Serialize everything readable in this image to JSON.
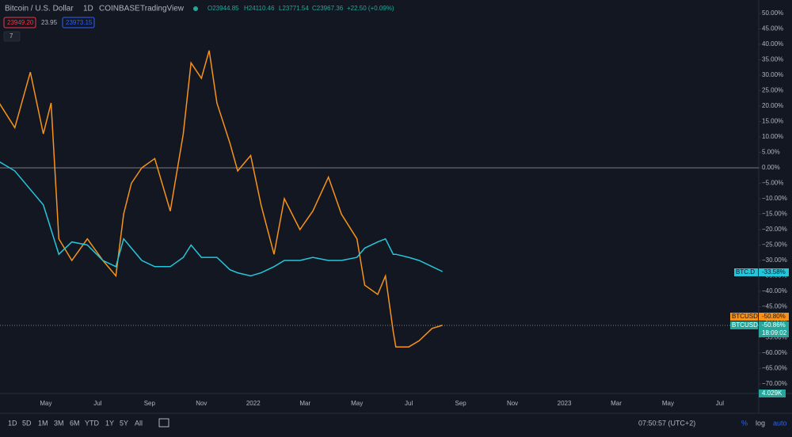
{
  "header": {
    "symbol": "Bitcoin / U.S. Dollar",
    "interval": "1D",
    "exchange": "COINBASE",
    "source": "TradingView",
    "open": "O23944.85",
    "high": "H24110.46",
    "low": "L23771.54",
    "close": "C23967.36",
    "change": "+22.50 (+0.09%)",
    "bid": "23949.20",
    "spread": "23.95",
    "ask": "23973.15",
    "indicators": "7"
  },
  "price_labels": {
    "dominance_name": "BTC.D",
    "dominance_value": "-33.58%",
    "usd_name_1": "BTCUSD",
    "usd_value_1": "-50.80%",
    "usd_name_2": "BTCUSD",
    "usd_value_2": "-50.86%",
    "countdown": "18:09:02",
    "volume": "4.029K"
  },
  "toolbar": {
    "ranges": [
      "1D",
      "5D",
      "1M",
      "3M",
      "6M",
      "YTD",
      "1Y",
      "5Y",
      "All"
    ],
    "clock": "07:50:57 (UTC+2)",
    "percent": "%",
    "log": "log",
    "auto": "auto"
  },
  "chart_data": {
    "type": "line",
    "grid": false,
    "x": [
      2.2,
      2.8,
      3.4,
      3.9,
      4.2,
      4.5,
      5.0,
      5.6,
      6.2,
      6.7,
      7.0,
      7.3,
      7.7,
      8.2,
      8.8,
      9.3,
      9.6,
      10.0,
      10.3,
      10.6,
      11.1,
      11.4,
      11.9,
      12.3,
      12.8,
      13.2,
      13.8,
      14.3,
      14.9,
      15.4,
      16.0,
      16.3,
      16.8,
      17.1,
      17.4,
      17.5,
      18.0,
      18.4,
      18.9,
      19.3
    ],
    "series": [
      {
        "name": "BTCUSD",
        "color": "#f7931a",
        "values": [
          21,
          13,
          31,
          11,
          21,
          -23,
          -30,
          -23,
          -30,
          -35,
          -15,
          -5,
          0,
          3,
          -14,
          11,
          34,
          29,
          38,
          21,
          8,
          -1,
          4,
          -12,
          -28,
          -10,
          -20,
          -14,
          -3,
          -15,
          -23,
          -38,
          -41,
          -35,
          -53,
          -58,
          -58,
          -56,
          -52,
          -51
        ]
      },
      {
        "name": "BTC.D",
        "color": "#26c6da",
        "values": [
          2,
          -1,
          -7,
          -12,
          -20,
          -28,
          -24,
          -25,
          -30,
          -32,
          -23,
          -26,
          -30,
          -32,
          -32,
          -29,
          -25,
          -29,
          -29,
          -29,
          -33,
          -34,
          -35,
          -34,
          -32,
          -30,
          -30,
          -29,
          -30,
          -30,
          -29,
          -26,
          -24,
          -23,
          -28,
          -28,
          -29,
          -30,
          -32,
          -33.6
        ]
      }
    ],
    "xlim": [
      2.23,
      31.5
    ],
    "xticks": [
      {
        "value": 4,
        "label": "May"
      },
      {
        "value": 6,
        "label": "Jul"
      },
      {
        "value": 8,
        "label": "Sep"
      },
      {
        "value": 10,
        "label": "Nov"
      },
      {
        "value": 12,
        "label": "2022"
      },
      {
        "value": 14,
        "label": "Mar"
      },
      {
        "value": 16,
        "label": "May"
      },
      {
        "value": 18,
        "label": "Jul"
      },
      {
        "value": 20,
        "label": "Sep"
      },
      {
        "value": 22,
        "label": "Nov"
      },
      {
        "value": 24,
        "label": "2023"
      },
      {
        "value": 26,
        "label": "Mar"
      },
      {
        "value": 28,
        "label": "May"
      },
      {
        "value": 30,
        "label": "Jul"
      }
    ],
    "ylim": [
      -70,
      50
    ],
    "yticks": [
      {
        "value": 50,
        "label": "50.00%"
      },
      {
        "value": 45,
        "label": "45.00%"
      },
      {
        "value": 40,
        "label": "40.00%"
      },
      {
        "value": 35,
        "label": "35.00%"
      },
      {
        "value": 30,
        "label": "30.00%"
      },
      {
        "value": 25,
        "label": "25.00%"
      },
      {
        "value": 20,
        "label": "20.00%"
      },
      {
        "value": 15,
        "label": "15.00%"
      },
      {
        "value": 10,
        "label": "10.00%"
      },
      {
        "value": 5,
        "label": "5.00%"
      },
      {
        "value": 0,
        "label": "0.00%"
      },
      {
        "value": -5,
        "label": "−5.00%"
      },
      {
        "value": -10,
        "label": "−10.00%"
      },
      {
        "value": -15,
        "label": "−15.00%"
      },
      {
        "value": -20,
        "label": "−20.00%"
      },
      {
        "value": -25,
        "label": "−25.00%"
      },
      {
        "value": -30,
        "label": "−30.00%"
      },
      {
        "value": -35,
        "label": "−35.00%"
      },
      {
        "value": -40,
        "label": "−40.00%"
      },
      {
        "value": -45,
        "label": "−45.00%"
      },
      {
        "value": -50,
        "label": "−50.00%"
      },
      {
        "value": -55,
        "label": "−55.00%"
      },
      {
        "value": -60,
        "label": "−60.00%"
      },
      {
        "value": -65,
        "label": "−65.00%"
      },
      {
        "value": -70,
        "label": "−70.00%"
      }
    ]
  }
}
